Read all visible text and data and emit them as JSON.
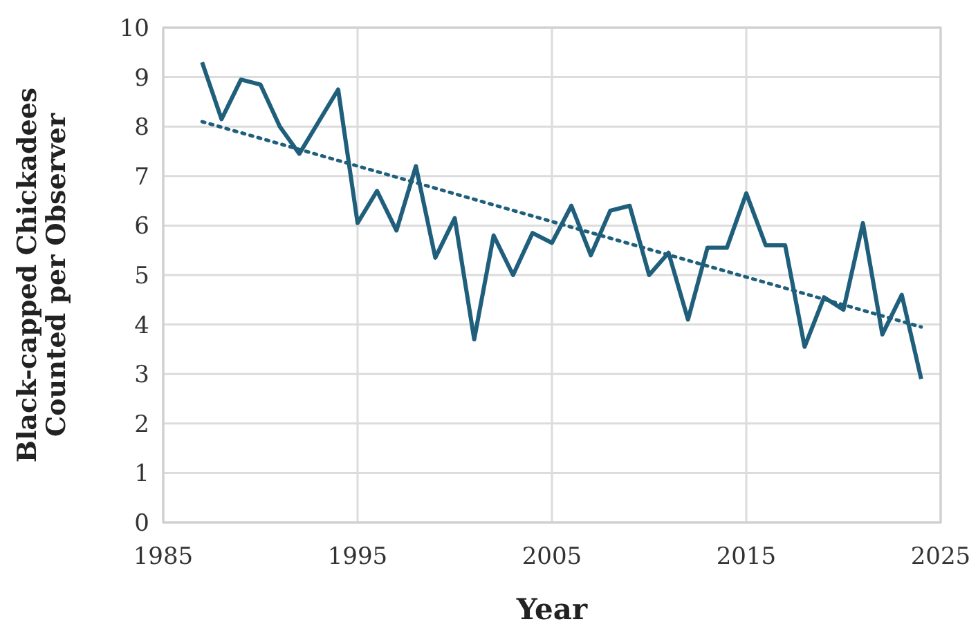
{
  "chart_data": {
    "type": "line",
    "xlabel": "Year",
    "ylabel": "Black-capped Chickadees\nCounted per Observer",
    "xlim": [
      1985,
      2025
    ],
    "xticks": [
      1985,
      1995,
      2005,
      2015,
      2025
    ],
    "ylim": [
      0,
      10
    ],
    "yticks": [
      0,
      1,
      2,
      3,
      4,
      5,
      6,
      7,
      8,
      9,
      10
    ],
    "grid": true,
    "series": [
      {
        "color": "#1f5f7c",
        "line_style": "solid",
        "x": [
          1987,
          1988,
          1989,
          1990,
          1991,
          1992,
          1993,
          1994,
          1995,
          1996,
          1997,
          1998,
          1999,
          2000,
          2001,
          2002,
          2003,
          2004,
          2005,
          2006,
          2007,
          2008,
          2009,
          2010,
          2011,
          2012,
          2013,
          2014,
          2015,
          2016,
          2017,
          2018,
          2019,
          2020,
          2021,
          2022,
          2023,
          2024
        ],
        "values": [
          9.3,
          8.15,
          8.95,
          8.85,
          8.0,
          7.45,
          8.1,
          8.75,
          6.05,
          6.7,
          5.9,
          7.2,
          5.35,
          6.15,
          3.7,
          5.8,
          5.0,
          5.85,
          5.65,
          6.4,
          5.4,
          6.3,
          6.4,
          5.0,
          5.45,
          4.1,
          5.55,
          5.55,
          6.65,
          5.6,
          5.6,
          3.55,
          4.55,
          4.3,
          6.05,
          3.8,
          4.6,
          2.9
        ]
      },
      {
        "color": "#1f5f7c",
        "line_style": "dotted",
        "x": [
          1987,
          2024
        ],
        "values": [
          8.1,
          3.95
        ]
      }
    ]
  }
}
